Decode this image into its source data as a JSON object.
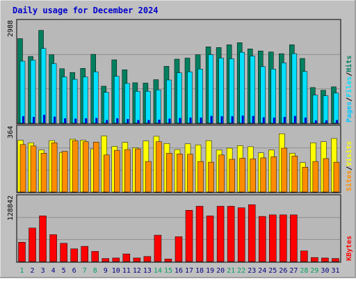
{
  "title": "Daily usage for December 2024",
  "colors": {
    "frame_bg": "#c0c0c0",
    "plot_bg": "#b8b8b8",
    "title": "#0000cc",
    "hits": "#007f5f",
    "files": "#00e0ff",
    "pages": "#00c8ff",
    "pages_inner": "#0000cc",
    "visits": "#ffff00",
    "sites": "#ff8c00",
    "kbytes": "#ff0000",
    "weekend_label": "#00a060",
    "weekday_label": "#000080"
  },
  "legends": {
    "top": [
      "Pages",
      "/",
      "Files",
      "/",
      "Hits"
    ],
    "mid": [
      "Sites",
      "/",
      "Visits"
    ],
    "bot": [
      "KBytes"
    ]
  },
  "chart_data": [
    {
      "type": "bar",
      "name": "hits-files-pages",
      "ymax_label": "2988",
      "ylim": [
        0,
        2988
      ],
      "categories": [
        "1",
        "2",
        "3",
        "4",
        "5",
        "6",
        "7",
        "8",
        "9",
        "10",
        "11",
        "12",
        "13",
        "14",
        "15",
        "16",
        "17",
        "18",
        "19",
        "20",
        "21",
        "22",
        "23",
        "24",
        "25",
        "26",
        "27",
        "28",
        "29",
        "30",
        "31"
      ],
      "weekend": [
        1,
        7,
        8,
        14,
        15,
        21,
        22,
        28,
        29
      ],
      "series": [
        {
          "name": "Hits",
          "values": [
            2470,
            1950,
            2710,
            2000,
            1590,
            1480,
            1600,
            2010,
            1080,
            1850,
            1560,
            1180,
            1170,
            1270,
            1660,
            1870,
            1900,
            2000,
            2230,
            2210,
            2290,
            2350,
            2170,
            2110,
            2080,
            2030,
            2290,
            1890,
            1040,
            960,
            1060
          ]
        },
        {
          "name": "Files",
          "values": [
            1810,
            1840,
            2180,
            1740,
            1350,
            1280,
            1350,
            1500,
            900,
            1370,
            1160,
            930,
            930,
            970,
            1260,
            1470,
            1500,
            1580,
            2000,
            1900,
            1880,
            2070,
            1960,
            1650,
            1580,
            1760,
            2030,
            1510,
            820,
            800,
            880
          ]
        },
        {
          "name": "Pages",
          "values": [
            200,
            180,
            240,
            190,
            140,
            130,
            140,
            150,
            90,
            140,
            120,
            90,
            90,
            100,
            130,
            150,
            160,
            160,
            210,
            200,
            200,
            220,
            210,
            170,
            160,
            180,
            210,
            160,
            80,
            80,
            90
          ]
        }
      ]
    },
    {
      "type": "bar",
      "name": "visits-sites",
      "ymax_label": "364",
      "ylim": [
        0,
        364
      ],
      "categories": [
        "1",
        "2",
        "3",
        "4",
        "5",
        "6",
        "7",
        "8",
        "9",
        "10",
        "11",
        "12",
        "13",
        "14",
        "15",
        "16",
        "17",
        "18",
        "19",
        "20",
        "21",
        "22",
        "23",
        "24",
        "25",
        "26",
        "27",
        "28",
        "29",
        "30",
        "31"
      ],
      "series": [
        {
          "name": "Visits",
          "values": [
            288,
            274,
            234,
            286,
            220,
            294,
            288,
            240,
            312,
            254,
            276,
            246,
            284,
            310,
            270,
            236,
            268,
            262,
            286,
            234,
            244,
            258,
            252,
            218,
            234,
            324,
            216,
            164,
            274,
            280,
            298
          ]
        },
        {
          "name": "Sites",
          "values": [
            264,
            256,
            216,
            274,
            226,
            286,
            280,
            278,
            206,
            232,
            236,
            240,
            170,
            280,
            216,
            212,
            210,
            170,
            166,
            206,
            182,
            188,
            184,
            190,
            196,
            244,
            200,
            138,
            170,
            186,
            166
          ]
        }
      ]
    },
    {
      "type": "bar",
      "name": "kbytes",
      "ymax_label": "128842",
      "ylim": [
        0,
        128842
      ],
      "categories": [
        "1",
        "2",
        "3",
        "4",
        "5",
        "6",
        "7",
        "8",
        "9",
        "10",
        "11",
        "12",
        "13",
        "14",
        "15",
        "16",
        "17",
        "18",
        "19",
        "20",
        "21",
        "22",
        "23",
        "24",
        "25",
        "26",
        "27",
        "28",
        "29",
        "30",
        "31"
      ],
      "series": [
        {
          "name": "KBytes",
          "values": [
            38000,
            66000,
            90000,
            53000,
            36000,
            25000,
            30000,
            20000,
            6000,
            7000,
            15000,
            7000,
            10000,
            52000,
            5000,
            49000,
            101000,
            109000,
            90000,
            109000,
            109000,
            106000,
            112000,
            89000,
            92000,
            92000,
            92000,
            21000,
            8000,
            7000,
            6000
          ]
        }
      ]
    }
  ]
}
